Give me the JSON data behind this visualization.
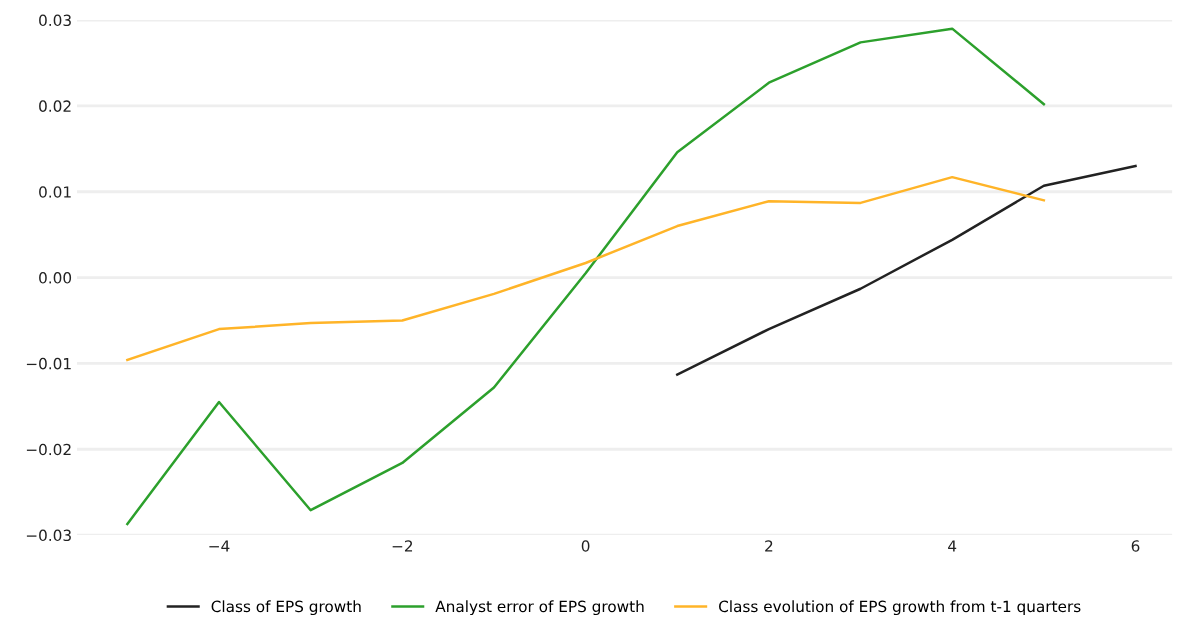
{
  "chart_data": {
    "type": "line",
    "x": [
      -5,
      -4,
      -3,
      -2,
      -1,
      0,
      1,
      2,
      3,
      4,
      5,
      6
    ],
    "series": [
      {
        "name": "Class of EPS growth",
        "color": "#222222",
        "values": [
          null,
          null,
          null,
          null,
          null,
          null,
          -0.0113,
          -0.006,
          -0.0013,
          0.0044,
          0.0107,
          0.013
        ]
      },
      {
        "name": "Analyst error of EPS growth",
        "color": "#2ca02c",
        "values": [
          -0.0287,
          -0.0145,
          -0.0271,
          -0.0216,
          -0.0128,
          0.0005,
          0.0146,
          0.0227,
          0.0274,
          0.029,
          0.0202,
          null
        ]
      },
      {
        "name": "Class evolution of EPS growth from t-1 quarters",
        "color": "#ffb428",
        "values": [
          -0.0096,
          -0.006,
          -0.0053,
          -0.005,
          -0.0019,
          0.0017,
          0.006,
          0.0089,
          0.0087,
          0.0117,
          0.009,
          null
        ]
      }
    ],
    "xlim": [
      -5.55,
      6.4
    ],
    "xticks": [
      {
        "value": -4,
        "label": "−4"
      },
      {
        "value": -2,
        "label": "−2"
      },
      0,
      2,
      4,
      6
    ],
    "ylim": [
      -0.03,
      0.03
    ],
    "yticks": [
      {
        "value": -0.03,
        "label": "−0.03"
      },
      {
        "value": -0.02,
        "label": "−0.02"
      },
      {
        "value": -0.01,
        "label": "−0.01"
      },
      {
        "value": 0,
        "label": "0.00"
      },
      {
        "value": 0.01,
        "label": "0.01"
      },
      {
        "value": 0.02,
        "label": "0.02"
      },
      {
        "value": 0.03,
        "label": "0.03"
      }
    ],
    "grid": "y",
    "legend": "bottom",
    "marker": "none",
    "line_style": "solid"
  }
}
